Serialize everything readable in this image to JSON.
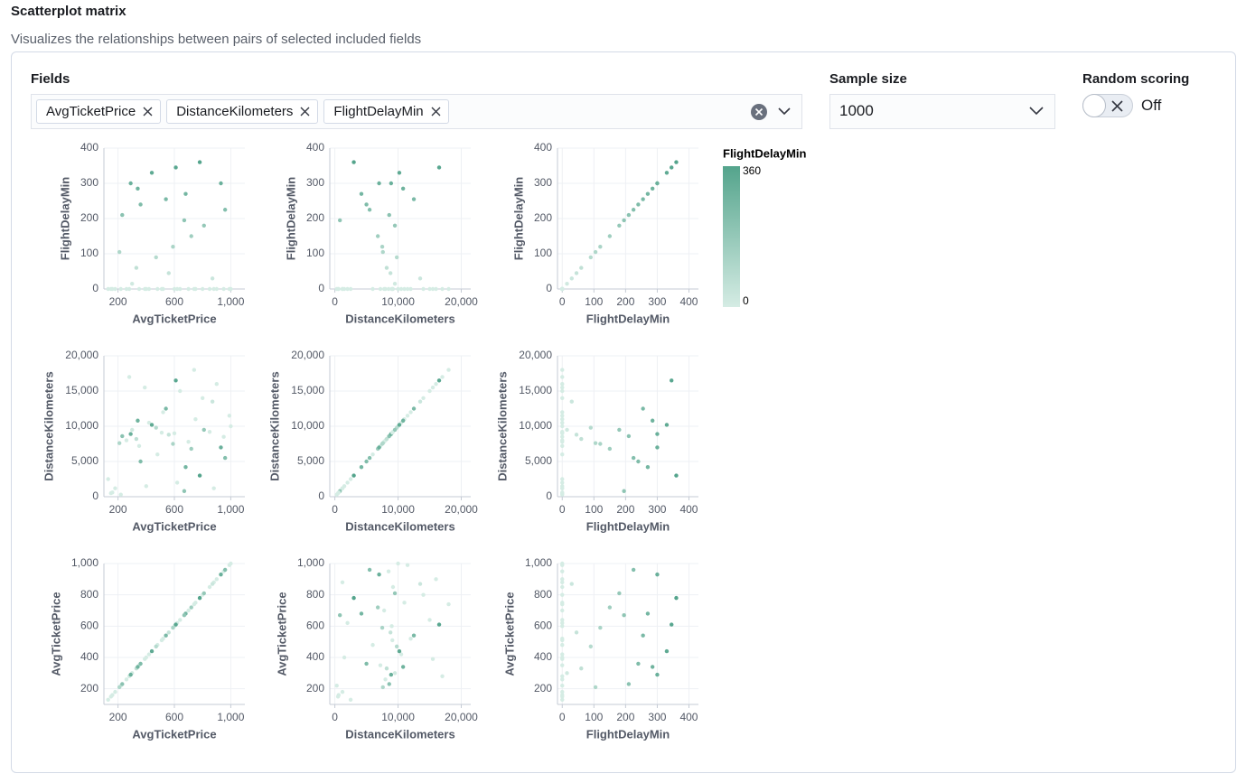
{
  "header": {
    "title": "Scatterplot matrix",
    "description": "Visualizes the relationships between pairs of selected included fields"
  },
  "fields": {
    "label": "Fields",
    "selected": [
      "AvgTicketPrice",
      "DistanceKilometers",
      "FlightDelayMin"
    ]
  },
  "sample_size": {
    "label": "Sample size",
    "value": "1000"
  },
  "random_scoring": {
    "label": "Random scoring",
    "state": "Off"
  },
  "matrix": {
    "type": "scatter",
    "x_fields": [
      "AvgTicketPrice",
      "DistanceKilometers",
      "FlightDelayMin"
    ],
    "y_fields": [
      "FlightDelayMin",
      "DistanceKilometers",
      "AvgTicketPrice"
    ],
    "grid": true,
    "axes": {
      "AvgTicketPrice": {
        "xlim": [
          100,
          1100
        ],
        "ylim": [
          100,
          1000
        ],
        "xticks": [
          200,
          600,
          {
            "value": 1000,
            "label": "1,000"
          }
        ],
        "yticks": [
          200,
          400,
          600,
          800,
          {
            "value": 1000,
            "label": "1,000"
          }
        ]
      },
      "DistanceKilometers": {
        "xlim": [
          -800,
          21500
        ],
        "ylim": [
          0,
          20000
        ],
        "xticks": [
          0,
          {
            "value": 10000,
            "label": "10,000"
          },
          {
            "value": 20000,
            "label": "20,000"
          }
        ],
        "yticks": [
          0,
          {
            "value": 5000,
            "label": "5,000"
          },
          {
            "value": 10000,
            "label": "10,000"
          },
          {
            "value": 15000,
            "label": "15,000"
          },
          {
            "value": 20000,
            "label": "20,000"
          }
        ]
      },
      "FlightDelayMin": {
        "xlim": [
          -15,
          430
        ],
        "ylim": [
          0,
          400
        ],
        "xticks": [
          0,
          100,
          200,
          300,
          400
        ],
        "yticks": [
          0,
          100,
          200,
          300,
          400
        ]
      }
    },
    "samples": {
      "AvgTicketPrice": [
        150,
        180,
        220,
        130,
        260,
        300,
        350,
        420,
        480,
        520,
        560,
        600,
        640,
        700,
        750,
        800,
        850,
        900,
        950,
        1000,
        280,
        400,
        620,
        880,
        330,
        470,
        590,
        720,
        810,
        230,
        360,
        680,
        930,
        440,
        780,
        290,
        540,
        670,
        160,
        990,
        510,
        870,
        390,
        740,
        210,
        960,
        610,
        340
      ],
      "DistanceKilometers": [
        500,
        1200,
        300,
        2500,
        8000,
        9500,
        7200,
        10500,
        6000,
        12000,
        8800,
        9000,
        15000,
        7800,
        11000,
        14000,
        9200,
        16000,
        8500,
        10000,
        17000,
        1500,
        2000,
        1200,
        8200,
        9800,
        7500,
        6800,
        9500,
        8600,
        5000,
        4200,
        7000,
        10200,
        3000,
        8900,
        12500,
        800,
        600,
        11500,
        9100,
        13500,
        15500,
        18000,
        7600,
        5500,
        16500,
        10800
      ],
      "FlightDelayMin": [
        0,
        0,
        0,
        0,
        0,
        15,
        0,
        0,
        0,
        0,
        45,
        0,
        0,
        0,
        0,
        0,
        0,
        0,
        0,
        0,
        0,
        0,
        0,
        0,
        60,
        90,
        120,
        150,
        180,
        210,
        240,
        270,
        300,
        330,
        360,
        300,
        255,
        195,
        0,
        0,
        0,
        30,
        0,
        0,
        105,
        225,
        345,
        285
      ]
    },
    "legend": {
      "title": "FlightDelayMin",
      "min": 0,
      "max": 360,
      "colors": [
        "#d5ece4",
        "#54a48c"
      ]
    }
  }
}
